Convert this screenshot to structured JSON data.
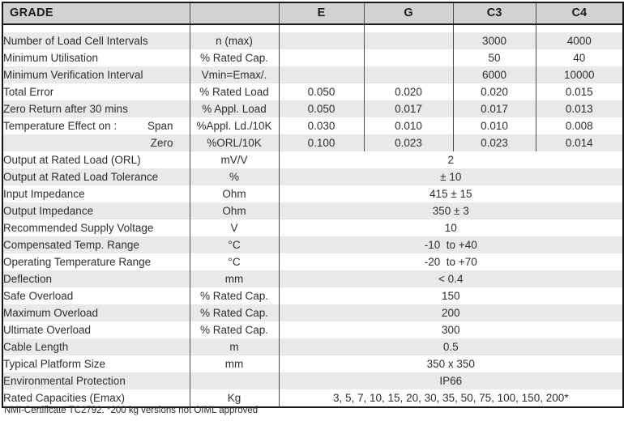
{
  "table": {
    "title_cell": "GRADE",
    "grade_columns": [
      "E",
      "G",
      "C3",
      "C4"
    ],
    "rows": [
      {
        "label": "Number of Load Cell Intervals",
        "unit": "n (max)",
        "values": [
          "",
          "",
          "3000",
          "4000"
        ]
      },
      {
        "label": "Minimum Utilisation",
        "unit": "% Rated Cap.",
        "values": [
          "",
          "",
          "50",
          "40"
        ]
      },
      {
        "label": "Minimum Verification Interval",
        "unit": "Vmin=Emax/.",
        "values": [
          "",
          "",
          "6000",
          "10000"
        ]
      },
      {
        "label": "Total Error",
        "unit": "% Rated Load",
        "values": [
          "0.050",
          "0.020",
          "0.020",
          "0.015"
        ]
      },
      {
        "label": "Zero Return after 30 mins",
        "unit": "% Appl. Load",
        "values": [
          "0.050",
          "0.017",
          "0.017",
          "0.013"
        ]
      },
      {
        "label": "Temperature Effect on :",
        "label_right": "Span",
        "unit": "%Appl. Ld./10K",
        "values": [
          "0.030",
          "0.010",
          "0.010",
          "0.008"
        ]
      },
      {
        "label": "",
        "label_right": "Zero",
        "unit": "%ORL/10K",
        "values": [
          "0.100",
          "0.023",
          "0.023",
          "0.014"
        ]
      },
      {
        "label": "Output at Rated Load (ORL)",
        "unit": "mV/V",
        "merged_value": "2"
      },
      {
        "label": "Output at Rated Load Tolerance",
        "unit": "%",
        "merged_value": "± 10"
      },
      {
        "label": "Input Impedance",
        "unit": "Ohm",
        "merged_value": "415 ± 15"
      },
      {
        "label": "Output Impedance",
        "unit": "Ohm",
        "merged_value": "350 ± 3"
      },
      {
        "label": "Recommended Supply Voltage",
        "unit": "V",
        "merged_value": "10"
      },
      {
        "label": "Compensated Temp. Range",
        "unit": "°C",
        "merged_value": "-10  to +40"
      },
      {
        "label": "Operating Temperature Range",
        "unit": "°C",
        "merged_value": "-20  to +70"
      },
      {
        "label": "Deflection",
        "unit": "mm",
        "merged_value": "< 0.4"
      },
      {
        "label": "Safe Overload",
        "unit": "% Rated Cap.",
        "merged_value": "150"
      },
      {
        "label": "Maximum Overload",
        "unit": "% Rated Cap.",
        "merged_value": "200"
      },
      {
        "label": "Ultimate Overload",
        "unit": "% Rated Cap.",
        "merged_value": "300"
      },
      {
        "label": "Cable Length",
        "unit": "m",
        "merged_value": "0.5"
      },
      {
        "label": "Typical Platform Size",
        "unit": "mm",
        "merged_value": "350 x 350"
      },
      {
        "label": "Environmental Protection",
        "unit": "",
        "merged_value": "IP66"
      },
      {
        "label": "Rated Capacities (Emax)",
        "unit": "Kg",
        "merged_value": "3, 5, 7, 10, 15, 20, 30, 35, 50, 75, 100, 150, 200*"
      }
    ]
  },
  "footnote": "NMI-Certificate TC2792. *200 kg versions not OIML approved",
  "colors": {
    "header_bg": "#d2d2d2",
    "band_gray": "#e9e9e9",
    "band_white": "#ffffff",
    "outer_border": "#161616",
    "inner_line": "#4d4d4d",
    "text": "#2e2e2e"
  }
}
